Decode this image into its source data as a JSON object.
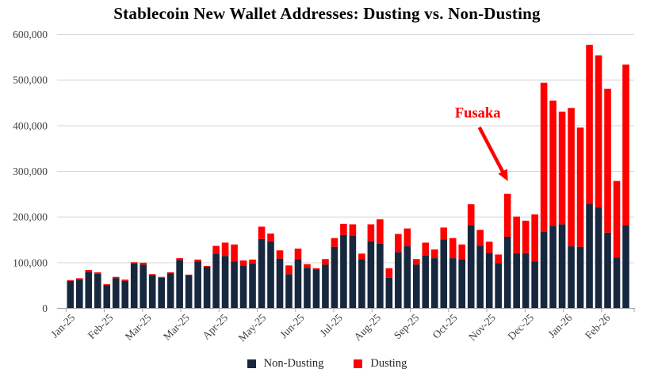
{
  "title": "Stablecoin New Wallet Addresses: Dusting vs. Non-Dusting",
  "legend": {
    "non_dusting_label": "Non-Dusting",
    "dusting_label": "Dusting"
  },
  "colors": {
    "non_dusting": "#17273E",
    "dusting": "#FF0000",
    "gridline": "#D9D9D9",
    "axis": "#A6A6A6",
    "tick_text": "#404040",
    "annotation": "#FE0000"
  },
  "chart_data": {
    "type": "bar",
    "stacked": true,
    "title": "Stablecoin New Wallet Addresses: Dusting vs. Non-Dusting",
    "ylabel": "",
    "xlabel": "",
    "ylim": [
      0,
      600000
    ],
    "y_tick_step": 100000,
    "y_tick_labels": [
      "0",
      "100,000",
      "200,000",
      "300,000",
      "400,000",
      "500,000",
      "600,000"
    ],
    "grid": true,
    "legend_position": "bottom",
    "x_tick_labels": [
      {
        "text": "Jan-25",
        "bar": 1
      },
      {
        "text": "Feb-25",
        "bar": 5.2
      },
      {
        "text": "Mar-25",
        "bar": 9.4
      },
      {
        "text": "Mar-25",
        "bar": 13.6
      },
      {
        "text": "Apr-25",
        "bar": 17.8
      },
      {
        "text": "May-25",
        "bar": 22
      },
      {
        "text": "Jun-25",
        "bar": 26.2
      },
      {
        "text": "Jul-25",
        "bar": 30.4
      },
      {
        "text": "Aug-25",
        "bar": 34.6
      },
      {
        "text": "Sep-25",
        "bar": 38.8
      },
      {
        "text": "Oct-25",
        "bar": 43
      },
      {
        "text": "Nov-25",
        "bar": 47.2
      },
      {
        "text": "Dec-25",
        "bar": 51.4
      },
      {
        "text": "Jan-26",
        "bar": 55.6
      },
      {
        "text": "Feb-26",
        "bar": 59.8
      }
    ],
    "series": [
      {
        "name": "Non-Dusting",
        "color": "#17273E",
        "values": [
          60000,
          63000,
          80000,
          76000,
          51000,
          66000,
          60000,
          98000,
          96000,
          73000,
          67000,
          77000,
          106000,
          72000,
          103000,
          91000,
          120000,
          115000,
          103000,
          94000,
          98000,
          152000,
          147000,
          109000,
          75000,
          108000,
          89000,
          85000,
          96000,
          135000,
          161000,
          160000,
          108000,
          147000,
          142000,
          67000,
          123000,
          136000,
          96000,
          116000,
          110000,
          151000,
          110000,
          108000,
          182000,
          137000,
          122000,
          99000,
          157000,
          121000,
          121000,
          103000,
          168000,
          181000,
          184000,
          136000,
          135000,
          229000,
          221000,
          166000,
          111000,
          182000
        ]
      },
      {
        "name": "Dusting",
        "color": "#FF0000",
        "values": [
          2000,
          3000,
          4000,
          3000,
          2000,
          3000,
          3000,
          3000,
          4000,
          2000,
          2000,
          2000,
          4000,
          2000,
          4000,
          2000,
          17000,
          29000,
          37000,
          11000,
          9000,
          27000,
          17000,
          18000,
          19000,
          23000,
          8000,
          3000,
          12000,
          19000,
          24000,
          24000,
          12000,
          37000,
          53000,
          21000,
          40000,
          39000,
          12000,
          28000,
          19000,
          26000,
          44000,
          32000,
          46000,
          35000,
          24000,
          19000,
          94000,
          80000,
          71000,
          103000,
          326000,
          274000,
          247000,
          303000,
          261000,
          348000,
          333000,
          315000,
          168000,
          352000
        ]
      }
    ],
    "annotation": {
      "text": "Fusaka",
      "points_to_bar": 49
    }
  }
}
